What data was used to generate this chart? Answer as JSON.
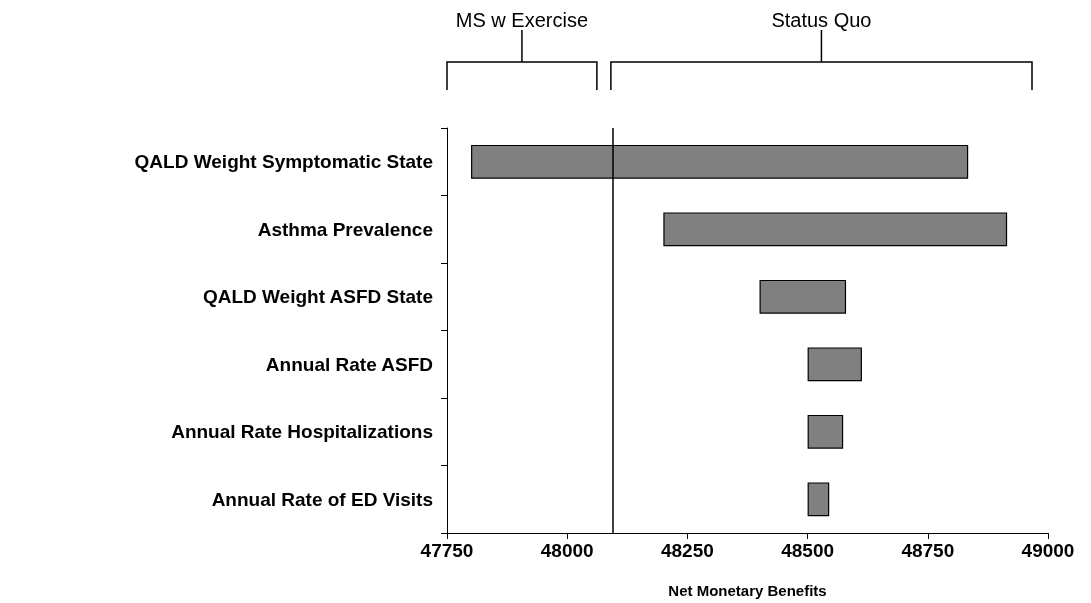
{
  "chart_data": {
    "type": "bar",
    "orientation": "horizontal",
    "xlabel": "Net Monetary Benefits",
    "categories": [
      "QALD Weight Symptomatic State",
      "Asthma Prevalence",
      "QALD Weight ASFD State",
      "Annual Rate ASFD",
      "Annual Rate Hospitalizations",
      "Annual Rate of ED Visits"
    ],
    "base": [
      47800,
      48200,
      48400,
      48500,
      48500,
      48500
    ],
    "values": [
      1034,
      715,
      180,
      113,
      74,
      45
    ],
    "color": "#808080",
    "xlim": [
      47750,
      49000
    ],
    "xticks": [
      47750,
      48000,
      48250,
      48500,
      48750,
      49000
    ],
    "grid": false,
    "ref_lines": [
      {
        "axis": "x",
        "value": 48095,
        "label": null
      }
    ],
    "annotations": [
      "MS w Exercise",
      "Status Quo"
    ]
  }
}
